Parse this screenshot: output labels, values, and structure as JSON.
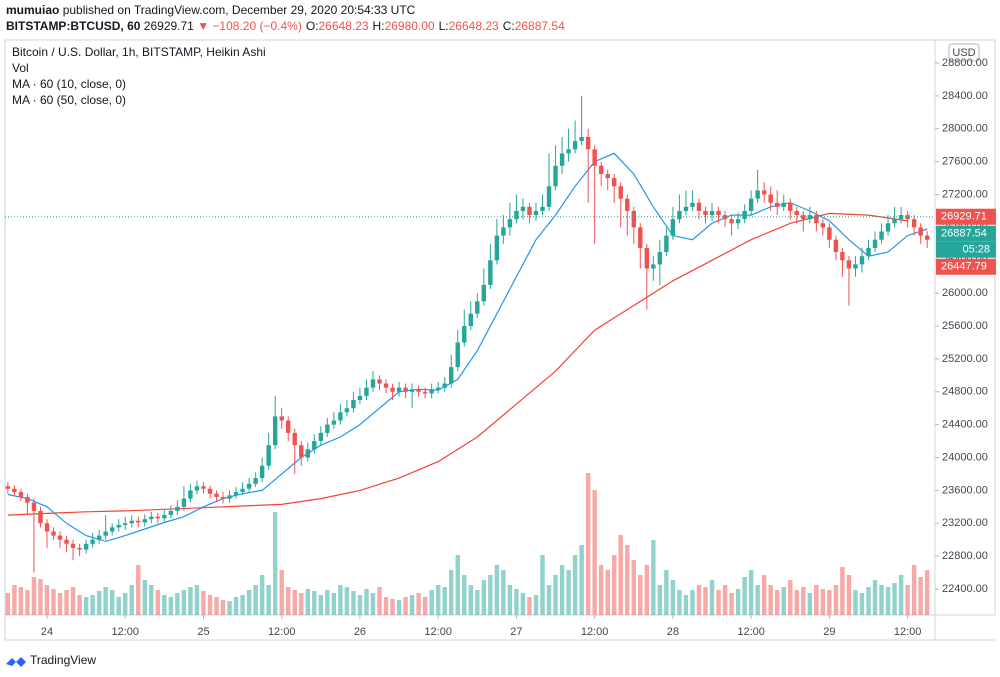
{
  "header": {
    "author": "mumuiao",
    "published": "published on TradingView.com, December 29, 2020 20:54:33 UTC",
    "symbol": "BITSTAMP:BTCUSD, 60",
    "last": "26929.71",
    "change": "▼ −108.20 (−0.4%)",
    "ohlc": [
      {
        "label": "O:",
        "value": "26648.23"
      },
      {
        "label": "H:",
        "value": "26980.00"
      },
      {
        "label": "L:",
        "value": "26648.23"
      },
      {
        "label": "C:",
        "value": "26887.54"
      }
    ]
  },
  "footer": "TradingView",
  "chart_data": {
    "type": "candlestick",
    "title": "Bitcoin / U.S. Dollar, 1h, BITSTAMP, Heikin Ashi",
    "volume_name": "Vol",
    "axis_unit": "USD",
    "up_color": "#26a69a",
    "down_color": "#ef5350",
    "xlim": [
      -0.44,
      142.2
    ],
    "xticks": [
      {
        "value": 6,
        "label": "24"
      },
      {
        "value": 18,
        "label": "12:00"
      },
      {
        "value": 30,
        "label": "25"
      },
      {
        "value": 42,
        "label": "12:00"
      },
      {
        "value": 54,
        "label": "26"
      },
      {
        "value": 66,
        "label": "12:00"
      },
      {
        "value": 78,
        "label": "27"
      },
      {
        "value": 90,
        "label": "12:00"
      },
      {
        "value": 102,
        "label": "28"
      },
      {
        "value": 114,
        "label": "12:00"
      },
      {
        "value": 126,
        "label": "29"
      },
      {
        "value": 138,
        "label": "12:00"
      }
    ],
    "ylim": [
      22084,
      29080
    ],
    "yticks": [
      {
        "value": 22400,
        "label": "22400.00"
      },
      {
        "value": 22800,
        "label": "22800.00"
      },
      {
        "value": 23200,
        "label": "23200.00"
      },
      {
        "value": 23600,
        "label": "23600.00"
      },
      {
        "value": 24000,
        "label": "24000.00"
      },
      {
        "value": 24400,
        "label": "24400.00"
      },
      {
        "value": 24800,
        "label": "24800.00"
      },
      {
        "value": 25200,
        "label": "25200.00"
      },
      {
        "value": 25600,
        "label": "25600.00"
      },
      {
        "value": 26000,
        "label": "26000.00"
      },
      {
        "value": 26400,
        "label": "26400.00"
      },
      {
        "value": 26800,
        "label": "26800.00"
      },
      {
        "value": 27200,
        "label": "27200.00"
      },
      {
        "value": 27600,
        "label": "27600.00"
      },
      {
        "value": 28000,
        "label": "28000.00"
      },
      {
        "value": 28400,
        "label": "28400.00"
      },
      {
        "value": 28800,
        "label": "28800.00"
      }
    ],
    "grid": false,
    "open": [
      23650,
      23620,
      23580,
      23520,
      23450,
      23350,
      23200,
      23100,
      23050,
      23000,
      22950,
      22900,
      22880,
      22950,
      23000,
      23050,
      23100,
      23150,
      23180,
      23200,
      23230,
      23210,
      23250,
      23280,
      23260,
      23300,
      23350,
      23400,
      23500,
      23600,
      23650,
      23620,
      23560,
      23520,
      23500,
      23540,
      23580,
      23620,
      23680,
      23750,
      23900,
      24150,
      24500,
      24450,
      24300,
      24150,
      24000,
      24100,
      24200,
      24300,
      24400,
      24450,
      24550,
      24600,
      24700,
      24750,
      24850,
      24950,
      24900,
      24850,
      24800,
      24850,
      24800,
      24830,
      24800,
      24780,
      24830,
      24850,
      24900,
      25100,
      25400,
      25600,
      25750,
      25900,
      26100,
      26400,
      26700,
      26800,
      26900,
      27000,
      27050,
      26950,
      27000,
      27050,
      27300,
      27550,
      27700,
      27750,
      27850,
      27900,
      27750,
      27550,
      27450,
      27400,
      27300,
      27150,
      27000,
      26800,
      26550,
      26300,
      26350,
      26500,
      26700,
      26900,
      27000,
      27050,
      27100,
      27000,
      26950,
      27000,
      26950,
      26900,
      26850,
      26900,
      27000,
      27150,
      27250,
      27200,
      27100,
      27050,
      27100,
      27000,
      26950,
      26900,
      26950,
      26850,
      26800,
      26650,
      26500,
      26400,
      26300,
      26350,
      26450,
      26550,
      26650,
      26750,
      26850,
      26900,
      26950,
      26900,
      26800,
      26700
    ],
    "high": [
      23700,
      23660,
      23620,
      23560,
      23500,
      23400,
      23250,
      23150,
      23100,
      23050,
      23000,
      22950,
      23000,
      23080,
      23120,
      23300,
      23200,
      23250,
      23280,
      23300,
      23280,
      23310,
      23340,
      23330,
      23360,
      23420,
      23480,
      23650,
      23680,
      23720,
      23700,
      23660,
      23600,
      23580,
      23600,
      23640,
      23700,
      23750,
      23820,
      24000,
      24300,
      24750,
      24600,
      24500,
      24350,
      24200,
      24180,
      24280,
      24380,
      24480,
      24550,
      24650,
      24700,
      24800,
      24850,
      24950,
      25050,
      25000,
      24950,
      24900,
      24920,
      24900,
      24900,
      24880,
      24850,
      24900,
      24920,
      24980,
      25250,
      25550,
      25800,
      25900,
      26000,
      26300,
      26600,
      26900,
      26950,
      27100,
      27200,
      27150,
      27100,
      27100,
      27200,
      27700,
      27800,
      27900,
      28000,
      28100,
      28400,
      28000,
      27800,
      27600,
      27500,
      27450,
      27350,
      27200,
      27050,
      26850,
      26600,
      26450,
      26650,
      26800,
      27050,
      27200,
      27250,
      27250,
      27150,
      27050,
      27100,
      27050,
      27000,
      26950,
      26980,
      27080,
      27250,
      27500,
      27350,
      27300,
      27250,
      27200,
      27150,
      27050,
      27000,
      27050,
      27000,
      26900,
      26850,
      26700,
      26550,
      26450,
      26450,
      26550,
      26650,
      26750,
      26850,
      26950,
      27050,
      27050,
      27000,
      26950,
      26850,
      26750
    ],
    "low": [
      23560,
      23530,
      23470,
      23300,
      22600,
      23150,
      22900,
      23000,
      22900,
      22850,
      22750,
      22800,
      22830,
      22900,
      22950,
      23000,
      23050,
      23100,
      23120,
      23150,
      23150,
      23160,
      23200,
      23200,
      23220,
      23260,
      23300,
      23350,
      23450,
      23550,
      23560,
      23500,
      23460,
      23440,
      23450,
      23500,
      23540,
      23580,
      23640,
      23700,
      23850,
      24100,
      24350,
      24200,
      23800,
      23900,
      23950,
      24050,
      24150,
      24250,
      24350,
      24400,
      24500,
      24550,
      24650,
      24700,
      24800,
      24820,
      24780,
      24700,
      24740,
      24720,
      24600,
      24740,
      24720,
      24720,
      24780,
      24800,
      24850,
      25050,
      25350,
      25550,
      25700,
      25850,
      26050,
      26350,
      26600,
      26700,
      26850,
      26900,
      26850,
      26880,
      26950,
      27000,
      27250,
      27450,
      27600,
      27700,
      27800,
      27100,
      26600,
      27300,
      27250,
      27100,
      26800,
      26700,
      26600,
      26300,
      25800,
      26150,
      26100,
      26450,
      26650,
      26850,
      26950,
      27000,
      26900,
      26850,
      26880,
      26850,
      26800,
      26700,
      26780,
      26850,
      26950,
      27100,
      27100,
      27000,
      26950,
      27000,
      26900,
      26850,
      26750,
      26850,
      26750,
      26700,
      26550,
      26400,
      26200,
      25850,
      26200,
      26250,
      26400,
      26500,
      26600,
      26700,
      26800,
      26850,
      26800,
      26700,
      26600,
      26550
    ],
    "close": [
      23620,
      23580,
      23520,
      23450,
      23350,
      23200,
      23100,
      23050,
      23000,
      22950,
      22900,
      22880,
      22950,
      23000,
      23050,
      23100,
      23150,
      23180,
      23200,
      23230,
      23210,
      23250,
      23280,
      23260,
      23300,
      23350,
      23400,
      23500,
      23600,
      23650,
      23620,
      23560,
      23520,
      23500,
      23540,
      23580,
      23620,
      23680,
      23750,
      23900,
      24150,
      24500,
      24450,
      24300,
      24150,
      24000,
      24100,
      24200,
      24300,
      24400,
      24450,
      24550,
      24600,
      24700,
      24750,
      24850,
      24950,
      24900,
      24850,
      24800,
      24850,
      24800,
      24830,
      24800,
      24780,
      24830,
      24850,
      24900,
      25100,
      25400,
      25600,
      25750,
      25900,
      26100,
      26400,
      26700,
      26800,
      26900,
      27000,
      27050,
      26950,
      27000,
      27050,
      27300,
      27550,
      27700,
      27750,
      27850,
      27900,
      27750,
      27550,
      27450,
      27400,
      27300,
      27150,
      27000,
      26800,
      26550,
      26300,
      26350,
      26500,
      26700,
      26900,
      27000,
      27050,
      27100,
      27000,
      26950,
      27000,
      26950,
      26900,
      26850,
      26900,
      27000,
      27150,
      27250,
      27200,
      27100,
      27050,
      27100,
      27000,
      26950,
      26900,
      26950,
      26850,
      26800,
      26650,
      26500,
      26400,
      26300,
      26350,
      26450,
      26550,
      26650,
      26750,
      26850,
      26900,
      26950,
      26900,
      26800,
      26700,
      26650
    ],
    "volume": [
      22,
      30,
      28,
      25,
      38,
      36,
      30,
      26,
      22,
      25,
      28,
      20,
      18,
      20,
      24,
      28,
      25,
      18,
      22,
      30,
      50,
      35,
      30,
      25,
      20,
      18,
      22,
      25,
      28,
      30,
      24,
      20,
      18,
      15,
      14,
      18,
      20,
      25,
      30,
      40,
      30,
      103,
      45,
      28,
      25,
      22,
      26,
      24,
      20,
      25,
      22,
      30,
      28,
      24,
      20,
      26,
      22,
      28,
      18,
      16,
      15,
      18,
      20,
      22,
      18,
      25,
      30,
      28,
      45,
      60,
      40,
      30,
      25,
      35,
      40,
      50,
      45,
      30,
      26,
      22,
      18,
      20,
      60,
      30,
      40,
      50,
      45,
      60,
      70,
      142,
      125,
      50,
      45,
      60,
      80,
      70,
      55,
      40,
      50,
      75,
      30,
      45,
      35,
      25,
      20,
      25,
      30,
      28,
      35,
      25,
      30,
      22,
      26,
      38,
      45,
      30,
      40,
      30,
      25,
      28,
      35,
      25,
      28,
      22,
      30,
      26,
      25,
      30,
      48,
      40,
      25,
      22,
      28,
      35,
      30,
      28,
      32,
      40,
      30,
      50,
      38,
      45
    ],
    "series": [
      {
        "name": "MA · 60 (10, close, 0)",
        "color": "#2196f3",
        "x": [
          0,
          3,
          6,
          9,
          12,
          15,
          18,
          21,
          24,
          27,
          30,
          33,
          36,
          39,
          42,
          45,
          48,
          51,
          54,
          57,
          60,
          63,
          66,
          69,
          72,
          75,
          78,
          81,
          84,
          87,
          90,
          93,
          96,
          99,
          102,
          105,
          108,
          111,
          114,
          117,
          120,
          123,
          126,
          129,
          132,
          135,
          138,
          141
        ],
        "values": [
          23550,
          23500,
          23400,
          23200,
          23050,
          22980,
          23050,
          23130,
          23210,
          23280,
          23400,
          23500,
          23560,
          23600,
          23800,
          24000,
          24150,
          24250,
          24400,
          24600,
          24800,
          24830,
          24820,
          24950,
          25300,
          25750,
          26200,
          26650,
          26950,
          27300,
          27600,
          27700,
          27450,
          27050,
          26700,
          26650,
          26850,
          26950,
          26950,
          27050,
          27100,
          27000,
          26880,
          26650,
          26450,
          26500,
          26700,
          26780
        ]
      },
      {
        "name": "MA · 60 (50, close, 0)",
        "color": "#f44336",
        "x": [
          0,
          6,
          12,
          18,
          24,
          30,
          36,
          42,
          48,
          54,
          60,
          66,
          72,
          78,
          84,
          90,
          96,
          102,
          108,
          114,
          120,
          126,
          132,
          138
        ],
        "values": [
          23300,
          23320,
          23340,
          23350,
          23370,
          23390,
          23410,
          23430,
          23500,
          23600,
          23750,
          23950,
          24250,
          24650,
          25050,
          25550,
          25850,
          26150,
          26400,
          26650,
          26850,
          26970,
          26950,
          26880
        ]
      }
    ],
    "price_labels": [
      {
        "value": 26929.71,
        "color": "#ef5350"
      },
      {
        "value": 26887.54,
        "color": "#26a69a",
        "countdown": "05:28"
      },
      {
        "value": 26447.79,
        "color": "#ef5350"
      }
    ]
  }
}
